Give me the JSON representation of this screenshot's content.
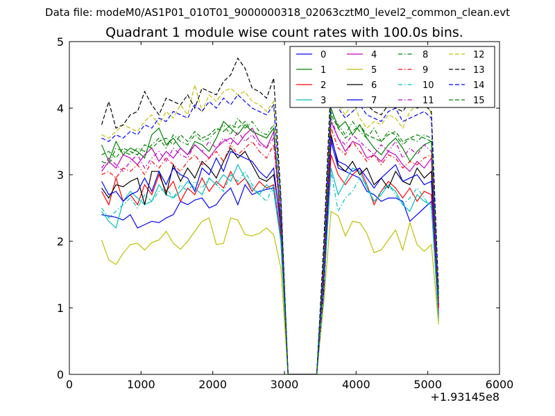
{
  "page": {
    "suptitle": "Data file: modeM0/AS1P01_010T01_9000000318_02063cztM0_level2_common_clean.evt"
  },
  "chart_data": {
    "type": "line",
    "title": "Quadrant 1 module wise count rates with 100.0s bins.",
    "xlabel": "",
    "ylabel": "",
    "x_offset_label": "+1.93145e8",
    "xlim": [
      0,
      6000
    ],
    "ylim": [
      0,
      5
    ],
    "x_ticks": [
      0,
      1000,
      2000,
      3000,
      4000,
      5000,
      6000
    ],
    "y_ticks": [
      0,
      1,
      2,
      3,
      4,
      5
    ],
    "x_tick_labels": [
      "0",
      "1000",
      "2000",
      "3000",
      "4000",
      "5000",
      "6000"
    ],
    "y_tick_labels": [
      "0",
      "1",
      "2",
      "3",
      "4",
      "5"
    ],
    "grid": false,
    "legend_position": "top-right",
    "x": [
      450,
      550,
      650,
      750,
      850,
      950,
      1050,
      1150,
      1250,
      1350,
      1450,
      1550,
      1650,
      1750,
      1850,
      1950,
      2050,
      2150,
      2250,
      2350,
      2450,
      2550,
      2650,
      2750,
      2850,
      2950,
      3050,
      3150,
      3250,
      3350,
      3450,
      3550,
      3650,
      3750,
      3850,
      3950,
      4050,
      4150,
      4250,
      4350,
      4450,
      4550,
      4650,
      4750,
      4850,
      4950,
      5050,
      5150
    ],
    "series": [
      {
        "name": "0",
        "color": "#0000ff",
        "dash": "solid",
        "values": [
          2.4,
          2.38,
          2.36,
          2.32,
          2.4,
          2.2,
          2.25,
          2.3,
          2.28,
          2.35,
          2.4,
          2.6,
          2.55,
          2.62,
          2.65,
          2.5,
          2.55,
          2.7,
          2.8,
          2.55,
          2.85,
          2.7,
          2.75,
          2.78,
          2.8,
          2.1,
          0,
          0,
          0,
          0,
          0,
          1.2,
          3.5,
          3.1,
          3.05,
          3.0,
          2.95,
          2.75,
          2.7,
          2.6,
          2.65,
          2.65,
          2.6,
          2.3,
          2.4,
          2.5,
          2.6,
          0.9
        ]
      },
      {
        "name": "1",
        "color": "#008000",
        "dash": "solid",
        "values": [
          3.45,
          3.2,
          3.5,
          3.3,
          3.4,
          3.35,
          3.25,
          3.6,
          3.7,
          3.45,
          3.55,
          3.4,
          3.3,
          3.5,
          3.45,
          3.35,
          3.55,
          3.8,
          3.7,
          3.6,
          3.75,
          3.65,
          3.6,
          3.55,
          3.7,
          2.3,
          0,
          0,
          0,
          0,
          0,
          1.6,
          4.0,
          3.7,
          3.8,
          3.6,
          3.75,
          3.55,
          3.4,
          3.3,
          3.45,
          3.55,
          3.4,
          3.2,
          3.35,
          3.45,
          3.5,
          1.0
        ]
      },
      {
        "name": "2",
        "color": "#ff0000",
        "dash": "solid",
        "values": [
          2.75,
          2.55,
          2.95,
          2.6,
          2.7,
          2.55,
          2.85,
          2.7,
          3.0,
          2.75,
          2.9,
          2.6,
          2.8,
          2.7,
          2.95,
          2.75,
          2.9,
          2.8,
          3.05,
          2.85,
          2.95,
          2.75,
          2.9,
          2.8,
          2.85,
          2.1,
          0,
          0,
          0,
          0,
          0,
          1.4,
          3.3,
          3.0,
          2.85,
          3.0,
          3.1,
          2.85,
          2.55,
          2.75,
          2.9,
          2.8,
          2.65,
          2.8,
          2.6,
          2.75,
          2.7,
          0.85
        ]
      },
      {
        "name": "3",
        "color": "#00bfbf",
        "dash": "solid",
        "values": [
          2.45,
          2.3,
          2.2,
          2.6,
          2.75,
          2.65,
          2.55,
          2.6,
          2.85,
          2.7,
          2.65,
          2.75,
          2.9,
          2.8,
          2.7,
          2.95,
          2.85,
          3.0,
          2.9,
          3.15,
          2.95,
          2.8,
          2.7,
          2.85,
          2.75,
          2.0,
          0,
          0,
          0,
          0,
          0,
          1.3,
          3.1,
          2.7,
          2.9,
          3.1,
          3.05,
          2.8,
          2.6,
          2.7,
          2.85,
          2.75,
          2.55,
          2.45,
          2.7,
          2.6,
          2.55,
          0.8
        ]
      },
      {
        "name": "4",
        "color": "#bf00bf",
        "dash": "solid",
        "values": [
          3.05,
          3.2,
          3.1,
          3.3,
          3.25,
          3.15,
          3.3,
          3.4,
          3.2,
          3.35,
          3.25,
          3.4,
          3.3,
          3.45,
          3.35,
          3.25,
          3.4,
          3.5,
          3.55,
          3.45,
          3.6,
          3.7,
          3.5,
          3.4,
          3.65,
          2.2,
          0,
          0,
          0,
          0,
          0,
          1.5,
          3.8,
          3.55,
          3.35,
          3.5,
          3.45,
          3.25,
          3.3,
          3.2,
          3.35,
          3.3,
          3.15,
          3.05,
          3.2,
          3.1,
          3.25,
          0.95
        ]
      },
      {
        "name": "5",
        "color": "#bfbf00",
        "dash": "solid",
        "values": [
          2.02,
          1.72,
          1.65,
          1.82,
          1.95,
          1.97,
          1.87,
          1.98,
          2.02,
          2.15,
          1.97,
          1.88,
          2.0,
          2.15,
          2.3,
          2.35,
          1.95,
          1.97,
          2.35,
          2.32,
          2.1,
          2.08,
          2.12,
          2.2,
          2.1,
          1.6,
          0,
          0,
          0,
          0,
          0,
          1.1,
          2.45,
          2.38,
          2.08,
          2.3,
          2.28,
          2.12,
          1.83,
          1.87,
          2.02,
          2.17,
          1.87,
          2.28,
          1.95,
          1.85,
          1.95,
          0.75
        ]
      },
      {
        "name": "6",
        "color": "#000000",
        "dash": "solid",
        "values": [
          2.8,
          2.65,
          2.85,
          2.82,
          2.9,
          2.95,
          2.55,
          3.05,
          3.05,
          2.7,
          3.15,
          2.9,
          3.1,
          2.95,
          3.2,
          3.1,
          2.95,
          3.2,
          3.4,
          3.25,
          3.35,
          3.15,
          2.95,
          2.9,
          3.0,
          2.3,
          0,
          0,
          0,
          0,
          0,
          1.4,
          3.6,
          3.15,
          3.05,
          3.2,
          3.0,
          3.1,
          2.85,
          2.95,
          2.8,
          3.05,
          2.9,
          2.85,
          3.1,
          2.95,
          3.05,
          1.0
        ]
      },
      {
        "name": "7",
        "color": "#0000ff",
        "dash": "solid",
        "values": [
          2.9,
          2.7,
          2.75,
          2.6,
          2.7,
          2.75,
          2.95,
          2.75,
          3.05,
          2.85,
          3.1,
          3.0,
          2.95,
          2.75,
          3.1,
          3.0,
          3.25,
          3.05,
          3.35,
          3.3,
          3.25,
          3.2,
          3.05,
          2.95,
          3.1,
          2.2,
          0,
          0,
          0,
          0,
          0,
          1.3,
          3.55,
          3.2,
          3.15,
          3.05,
          3.1,
          2.95,
          2.8,
          2.95,
          3.05,
          3.15,
          2.9,
          2.95,
          3.0,
          2.85,
          2.9,
          1.05
        ]
      },
      {
        "name": "8",
        "color": "#008000",
        "dash": "dashdot",
        "values": [
          3.2,
          3.15,
          3.4,
          3.35,
          3.3,
          3.4,
          3.35,
          3.45,
          3.55,
          3.4,
          3.6,
          3.5,
          3.45,
          3.6,
          3.5,
          3.55,
          3.65,
          3.75,
          3.6,
          3.85,
          3.7,
          3.8,
          3.65,
          3.6,
          3.75,
          2.4,
          0,
          0,
          0,
          0,
          0,
          1.7,
          3.95,
          3.75,
          3.6,
          3.8,
          3.65,
          3.55,
          3.7,
          3.5,
          3.65,
          3.6,
          3.45,
          3.55,
          3.5,
          3.6,
          3.55,
          1.1
        ]
      },
      {
        "name": "9",
        "color": "#ff0000",
        "dash": "dashdot",
        "values": [
          3.0,
          3.05,
          2.95,
          3.1,
          3.05,
          3.15,
          3.0,
          3.2,
          3.1,
          3.25,
          3.15,
          3.05,
          3.2,
          3.3,
          3.15,
          3.25,
          3.35,
          3.2,
          3.45,
          3.3,
          3.4,
          3.5,
          3.35,
          3.25,
          3.45,
          2.3,
          0,
          0,
          0,
          0,
          0,
          1.5,
          3.7,
          3.4,
          3.3,
          3.5,
          3.35,
          3.2,
          3.3,
          3.15,
          3.3,
          3.25,
          3.1,
          3.2,
          3.15,
          3.25,
          3.3,
          1.0
        ]
      },
      {
        "name": "10",
        "color": "#00bfbf",
        "dash": "dashdot",
        "values": [
          2.5,
          2.35,
          2.45,
          2.55,
          2.65,
          2.5,
          2.7,
          2.6,
          2.75,
          2.8,
          2.65,
          2.85,
          2.75,
          2.9,
          2.8,
          2.95,
          2.85,
          2.75,
          3.0,
          2.9,
          3.05,
          2.85,
          2.7,
          2.6,
          2.85,
          2.0,
          0,
          0,
          0,
          0,
          0,
          1.3,
          3.05,
          2.45,
          2.65,
          2.75,
          2.95,
          2.85,
          2.6,
          2.75,
          2.85,
          2.7,
          2.55,
          2.65,
          2.8,
          2.65,
          2.5,
          0.85
        ]
      },
      {
        "name": "11",
        "color": "#bf00bf",
        "dash": "dashdot",
        "values": [
          3.1,
          3.25,
          3.15,
          3.05,
          3.2,
          3.3,
          3.1,
          3.25,
          3.35,
          3.2,
          3.4,
          3.3,
          3.25,
          3.45,
          3.35,
          3.5,
          3.4,
          3.55,
          3.45,
          3.65,
          3.5,
          3.6,
          3.45,
          3.4,
          3.55,
          2.3,
          0,
          0,
          0,
          0,
          0,
          1.6,
          3.85,
          3.55,
          3.45,
          3.6,
          3.5,
          3.4,
          3.3,
          3.45,
          3.35,
          3.5,
          3.25,
          3.4,
          3.3,
          3.45,
          3.35,
          1.05
        ]
      },
      {
        "name": "12",
        "color": "#bfbf00",
        "dash": "dashed",
        "values": [
          3.6,
          3.55,
          3.65,
          3.75,
          3.7,
          3.65,
          3.8,
          3.9,
          3.75,
          3.95,
          3.85,
          4.05,
          3.9,
          4.35,
          3.95,
          4.2,
          4.1,
          4.25,
          4.3,
          4.2,
          4.25,
          4.1,
          4.05,
          3.95,
          4.1,
          2.6,
          0,
          0,
          0,
          0,
          0,
          1.9,
          4.2,
          4.05,
          3.9,
          4.1,
          3.85,
          3.7,
          3.8,
          3.75,
          3.9,
          3.85,
          3.7,
          3.95,
          4.05,
          4.2,
          3.9,
          1.2
        ]
      },
      {
        "name": "13",
        "color": "#000000",
        "dash": "dashed",
        "values": [
          3.75,
          4.1,
          3.7,
          3.75,
          3.9,
          3.95,
          4.25,
          4.05,
          3.9,
          4.15,
          4.1,
          4.05,
          4.2,
          4.0,
          4.3,
          4.25,
          4.2,
          4.4,
          4.5,
          4.75,
          4.6,
          4.3,
          4.25,
          4.15,
          4.45,
          2.7,
          0,
          0,
          0,
          0,
          0,
          2.0,
          4.45,
          4.35,
          4.2,
          4.1,
          4.15,
          4.05,
          3.95,
          3.9,
          4.05,
          4.0,
          3.95,
          4.1,
          4.0,
          4.05,
          3.95,
          1.25
        ]
      },
      {
        "name": "14",
        "color": "#0000ff",
        "dash": "dashed",
        "values": [
          3.55,
          3.5,
          3.6,
          3.55,
          3.65,
          3.6,
          3.75,
          3.7,
          3.85,
          3.8,
          3.95,
          3.9,
          3.85,
          4.05,
          3.95,
          4.1,
          4.0,
          4.15,
          4.05,
          4.2,
          4.1,
          4.0,
          3.95,
          3.9,
          4.05,
          2.6,
          0,
          0,
          0,
          0,
          0,
          1.8,
          4.15,
          4.0,
          3.85,
          3.95,
          4.05,
          3.9,
          3.85,
          3.8,
          3.95,
          4.0,
          3.8,
          3.85,
          3.9,
          3.95,
          3.85,
          1.15
        ]
      },
      {
        "name": "15",
        "color": "#008000",
        "dash": "dashed",
        "values": [
          3.3,
          3.35,
          3.25,
          3.4,
          3.35,
          3.3,
          3.45,
          3.4,
          3.5,
          3.55,
          3.45,
          3.6,
          3.5,
          3.65,
          3.55,
          3.6,
          3.7,
          3.65,
          3.75,
          3.7,
          3.8,
          3.65,
          3.6,
          3.55,
          3.7,
          2.4,
          0,
          0,
          0,
          0,
          0,
          1.7,
          3.9,
          3.7,
          3.55,
          3.65,
          3.75,
          3.6,
          3.55,
          3.5,
          3.6,
          3.65,
          3.5,
          3.55,
          3.6,
          3.55,
          3.5,
          1.1
        ]
      }
    ]
  }
}
